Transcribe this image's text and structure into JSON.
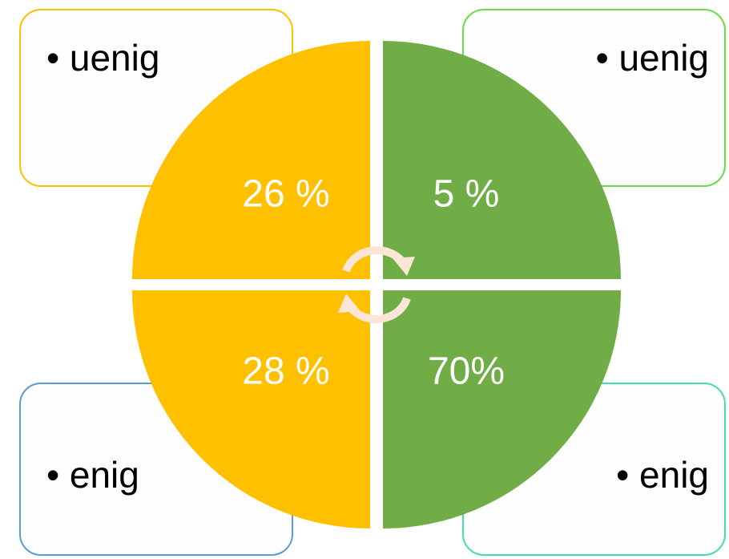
{
  "quadrants": [
    {
      "label": "• uenig",
      "value": "26 %"
    },
    {
      "label": "• uenig",
      "value": "5 %"
    },
    {
      "label": "• enig",
      "value": "28 %"
    },
    {
      "label": "• enig",
      "value": "70%"
    }
  ]
}
